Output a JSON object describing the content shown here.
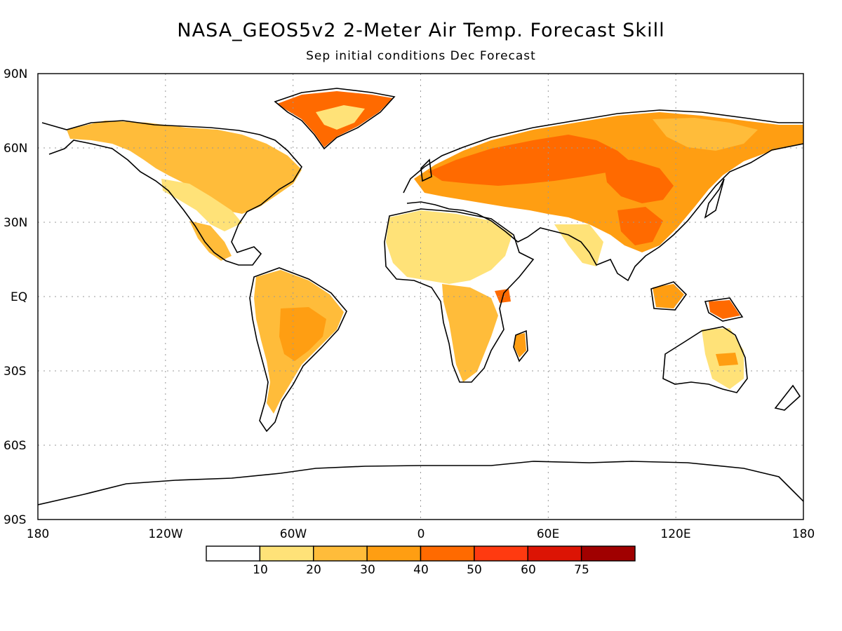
{
  "title": "NASA_GEOS5v2 2-Meter Air Temp. Forecast Skill",
  "subtitle": "Sep initial conditions  Dec Forecast",
  "axes": {
    "lat_labels": [
      "90N",
      "60N",
      "30N",
      "EQ",
      "30S",
      "60S",
      "90S"
    ],
    "lon_labels": [
      "180",
      "120W",
      "60W",
      "0",
      "60E",
      "120E",
      "180"
    ]
  },
  "colorbar": {
    "colors": [
      "#ffffff",
      "#ffe278",
      "#ffbc3a",
      "#ff9e12",
      "#ff6a00",
      "#ff3a10",
      "#dc1404",
      "#a00000"
    ],
    "labels": [
      "10",
      "20",
      "30",
      "40",
      "50",
      "60",
      "75"
    ]
  },
  "map": {
    "grid": "dotted",
    "projection": "lat-lon"
  }
}
